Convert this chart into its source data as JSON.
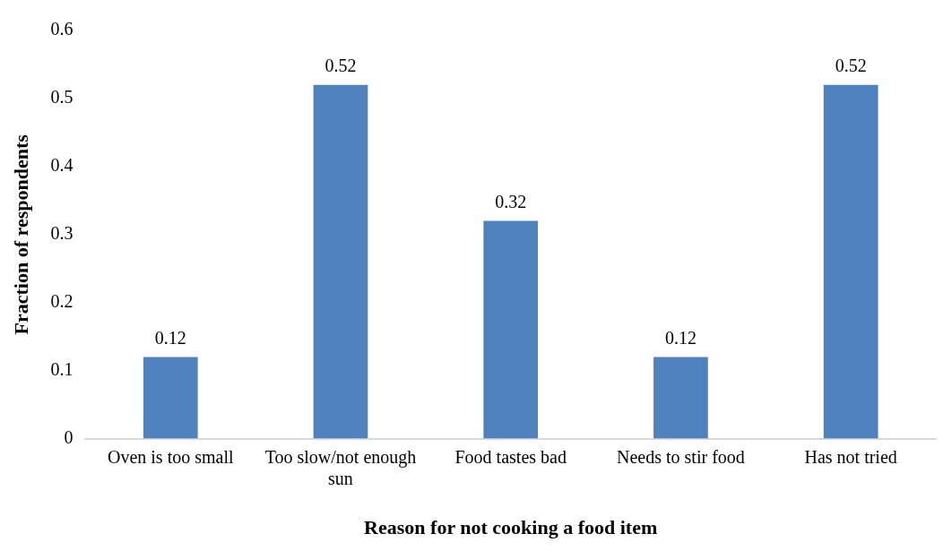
{
  "chart_data": {
    "type": "bar",
    "xlabel": "Reason for not cooking a food item",
    "ylabel": "Fraction of respondents",
    "categories": [
      "Oven is too small",
      "Too slow/not enough sun",
      "Food tastes bad",
      "Needs to stir food",
      "Has not tried"
    ],
    "values": [
      0.12,
      0.52,
      0.32,
      0.12,
      0.52
    ],
    "color": "#4f81bd",
    "ylim": [
      0,
      0.6
    ],
    "yticks": [
      0,
      0.1,
      0.2,
      0.3,
      0.4,
      0.5,
      0.6
    ],
    "grid": false,
    "legend": false,
    "data_labels": true
  }
}
